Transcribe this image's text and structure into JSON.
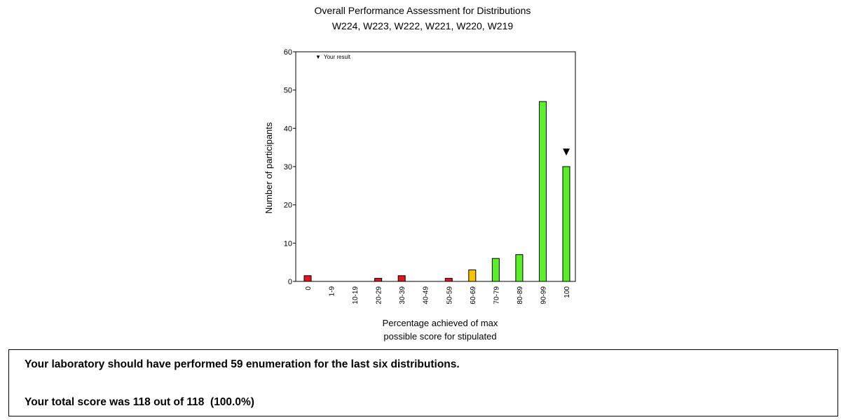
{
  "chart_data": {
    "type": "bar",
    "title": "Overall Performance Assessment for Distributions",
    "subtitle": "W224, W223, W222, W221, W220, W219",
    "xlabel_line1": "Percentage achieved of max",
    "xlabel_line2": "possible score for stipulated",
    "ylabel": "Number of participants",
    "ylim": [
      0,
      60
    ],
    "yticks": [
      0,
      10,
      20,
      30,
      40,
      50,
      60
    ],
    "categories": [
      "0",
      "1-9",
      "10-19",
      "20-29",
      "30-39",
      "40-49",
      "50-59",
      "60-69",
      "70-79",
      "80-89",
      "90-99",
      "100"
    ],
    "values": [
      1.5,
      0,
      0,
      0.8,
      1.5,
      0,
      0.8,
      3,
      6,
      7,
      47,
      30
    ],
    "bar_colors": [
      "#e8141c",
      "#e8141c",
      "#e8141c",
      "#e8141c",
      "#e8141c",
      "#e8141c",
      "#e8141c",
      "#f5c600",
      "#59f028",
      "#59f028",
      "#59f028",
      "#59f028"
    ],
    "legend": {
      "marker": "▼",
      "label": "Your result",
      "placement": "top-left"
    },
    "your_result_category": "100"
  },
  "summary": {
    "line1": "Your laboratory should have performed 59 enumeration for the last six distributions.",
    "line2": "Your total score was 118 out of 118  (100.0%)"
  }
}
